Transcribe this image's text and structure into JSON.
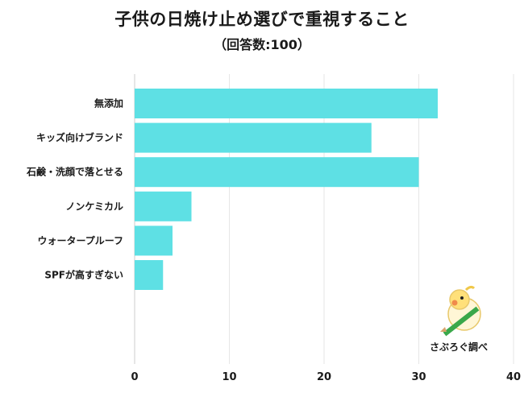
{
  "title": "子供の日焼け止め選びで重視すること",
  "subtitle": "（回答数:100）",
  "brand": "さぶろぐ調べ",
  "colors": {
    "bar": "#5ee0e4",
    "grid": "#e6e6e6",
    "axis": "#cccccc"
  },
  "chart_data": {
    "type": "bar",
    "orientation": "horizontal",
    "title": "子供の日焼け止め選びで重視すること",
    "subtitle": "（回答数:100）",
    "categories": [
      "無添加",
      "キッズ向けブランド",
      "石鹸・洗顔で落とせる",
      "ノンケミカル",
      "ウォータープルーフ",
      "SPFが高すぎない"
    ],
    "values": [
      32,
      25,
      30,
      6,
      4,
      3
    ],
    "xlim": [
      0,
      40
    ],
    "xticks": [
      0,
      10,
      20,
      30,
      40
    ],
    "grid": true
  }
}
